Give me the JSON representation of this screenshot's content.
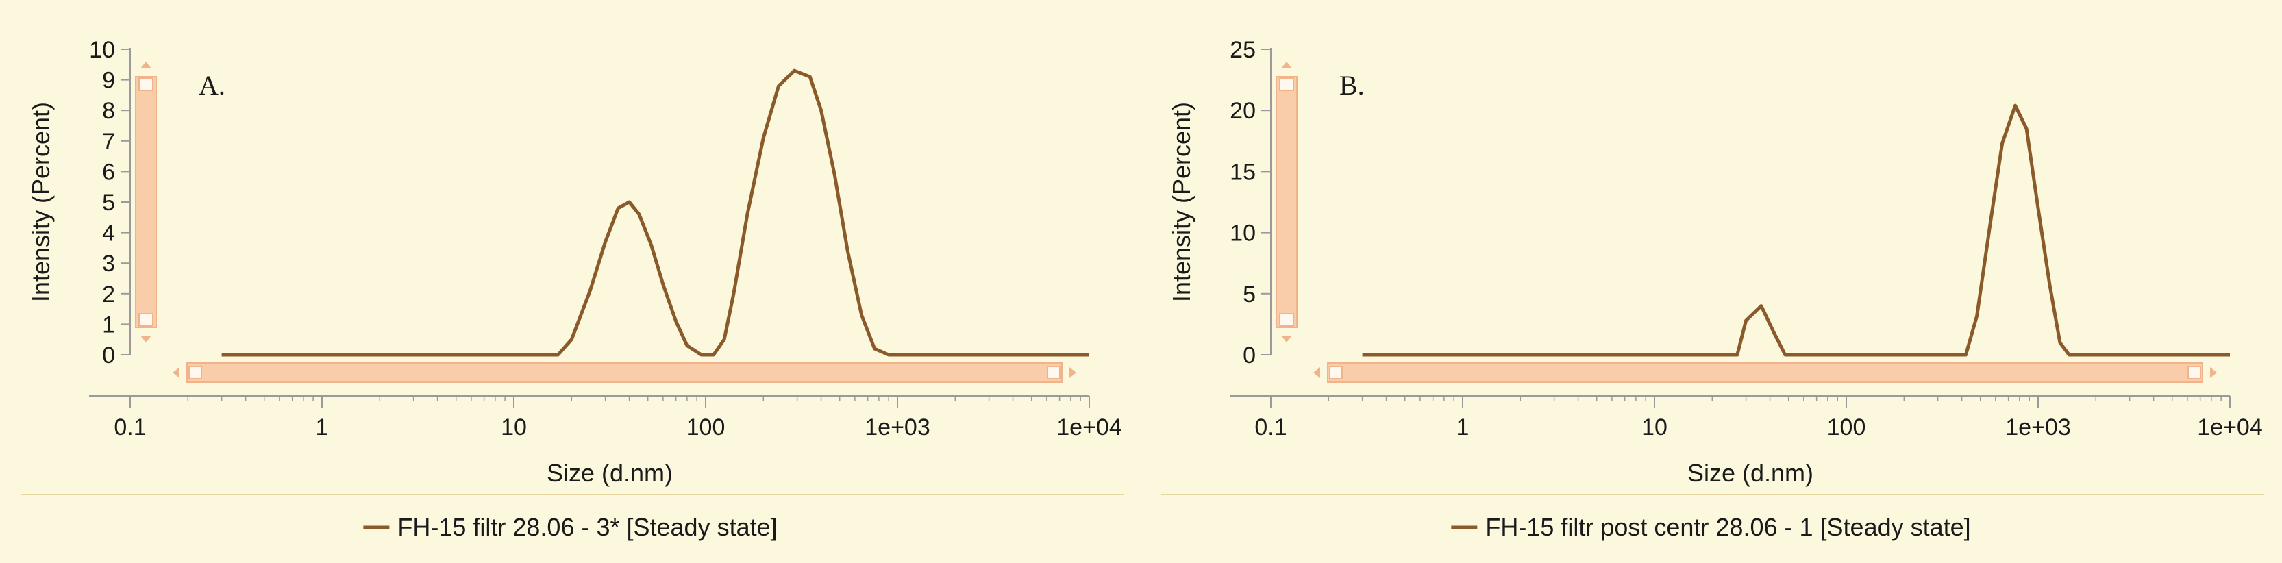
{
  "chart_data": [
    {
      "type": "line",
      "panel_label": "A.",
      "xlabel": "Size (d.nm)",
      "ylabel": "Intensity (Percent)",
      "xscale": "log",
      "xlim": [
        0.1,
        10000
      ],
      "ylim": [
        0,
        10
      ],
      "x_ticks": [
        "0.1",
        "1",
        "10",
        "100",
        "1e+03",
        "1e+04"
      ],
      "y_ticks": [
        "0",
        "1",
        "2",
        "3",
        "4",
        "5",
        "6",
        "7",
        "8",
        "9",
        "10"
      ],
      "legend_position": "bottom-center",
      "series": [
        {
          "name": "FH-15 filtr 28.06 - 3* [Steady state]",
          "color": "#8b5a2b",
          "x": [
            0.3,
            17,
            20,
            25,
            30,
            35,
            40,
            45,
            52,
            60,
            70,
            80,
            95,
            110,
            125,
            140,
            165,
            200,
            240,
            290,
            350,
            400,
            470,
            550,
            650,
            760,
            900,
            1070,
            1250,
            10000
          ],
          "y": [
            0,
            0,
            0.5,
            2.1,
            3.7,
            4.8,
            5.0,
            4.6,
            3.6,
            2.3,
            1.1,
            0.3,
            0,
            0,
            0.5,
            2.0,
            4.6,
            7.1,
            8.8,
            9.3,
            9.1,
            8.0,
            5.9,
            3.4,
            1.3,
            0.2,
            0,
            0,
            0,
            0
          ]
        }
      ]
    },
    {
      "type": "line",
      "panel_label": "B.",
      "xlabel": "Size (d.nm)",
      "ylabel": "Intensity (Percent)",
      "xscale": "log",
      "xlim": [
        0.1,
        10000
      ],
      "ylim": [
        0,
        25
      ],
      "x_ticks": [
        "0.1",
        "1",
        "10",
        "100",
        "1e+03",
        "1e+04"
      ],
      "y_ticks": [
        "0",
        "5",
        "10",
        "15",
        "20",
        "25"
      ],
      "legend_position": "bottom-center",
      "series": [
        {
          "name": "FH-15 filtr post centr 28.06 - 1 [Steady state]",
          "color": "#8b5a2b",
          "x": [
            0.3,
            27,
            30,
            36,
            42,
            48,
            420,
            480,
            560,
            650,
            760,
            870,
            1000,
            1150,
            1300,
            1450,
            10000
          ],
          "y": [
            0,
            0,
            2.8,
            4.0,
            1.8,
            0,
            0,
            3.2,
            10.5,
            17.3,
            20.4,
            18.5,
            12.0,
            5.7,
            1.0,
            0,
            0
          ]
        }
      ]
    }
  ]
}
